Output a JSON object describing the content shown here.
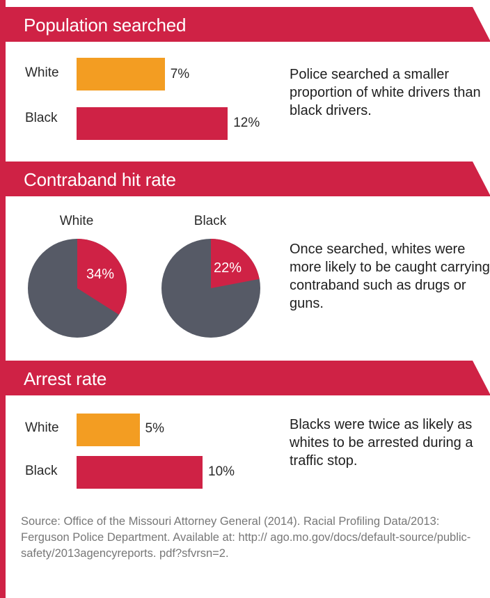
{
  "colors": {
    "red": "#cf2245",
    "orange": "#f39d22",
    "gray": "#565a66"
  },
  "sections": [
    {
      "title": "Population searched",
      "note": "Police searched a smaller proportion of white drivers than black drivers.",
      "rows": [
        {
          "label": "White",
          "value_label": "7%"
        },
        {
          "label": "Black",
          "value_label": "12%"
        }
      ]
    },
    {
      "title": "Contraband hit rate",
      "note": "Once searched, whites were more likely to be caught carrying contraband such as drugs or guns.",
      "pies": [
        {
          "label": "White",
          "value_label": "34%"
        },
        {
          "label": "Black",
          "value_label": "22%"
        }
      ]
    },
    {
      "title": "Arrest rate",
      "note": "Blacks were twice as likely as whites to be arrested during a traffic stop.",
      "rows": [
        {
          "label": "White",
          "value_label": "5%"
        },
        {
          "label": "Black",
          "value_label": "10%"
        }
      ]
    }
  ],
  "source": "Source: Office of the Missouri Attorney General (2014). Racial Profiling Data/2013: Ferguson Police Department. Available at: http:// ago.mo.gov/docs/default-source/public-safety/2013agencyreports. pdf?sfvrsn=2.",
  "chart_data": [
    {
      "type": "bar",
      "title": "Population searched",
      "categories": [
        "White",
        "Black"
      ],
      "values": [
        7,
        12
      ],
      "unit": "%"
    },
    {
      "type": "pie",
      "title": "Contraband hit rate",
      "pies": [
        {
          "label": "White",
          "slices": [
            {
              "value": 34
            },
            {
              "value": 66
            }
          ]
        },
        {
          "label": "Black",
          "slices": [
            {
              "value": 22
            },
            {
              "value": 78
            }
          ]
        }
      ]
    },
    {
      "type": "bar",
      "title": "Arrest rate",
      "categories": [
        "White",
        "Black"
      ],
      "values": [
        5,
        10
      ],
      "unit": "%"
    }
  ]
}
